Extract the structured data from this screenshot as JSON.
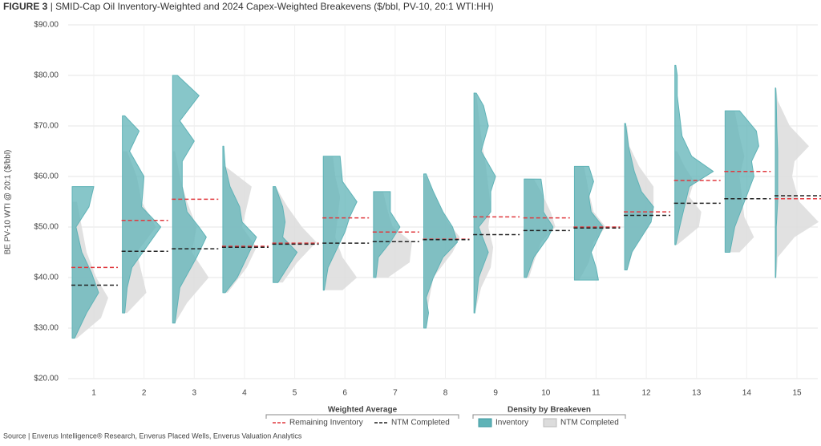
{
  "chart_data": {
    "type": "violin",
    "figure_label": "FIGURE 3",
    "title": "| SMID-Cap Oil Inventory-Weighted and 2024 Capex-Weighted Breakevens ($/bbl, PV-10, 20:1 WTI:HH)",
    "y_label": "BE PV-10 WTI @ 20:1 ($/bbl)",
    "source": "Source | Enverus Intelligence® Research, Enverus Placed Wells, Enverus Valuation Analytics",
    "categories": [
      "1",
      "2",
      "3",
      "4",
      "5",
      "6",
      "7",
      "8",
      "9",
      "10",
      "11",
      "12",
      "13",
      "14",
      "15"
    ],
    "ylim": [
      20,
      90
    ],
    "yticks": [
      {
        "value": 20,
        "label": "$20.00"
      },
      {
        "value": 30,
        "label": "$30.00"
      },
      {
        "value": 40,
        "label": "$40.00"
      },
      {
        "value": 50,
        "label": "$50.00"
      },
      {
        "value": 60,
        "label": "$60.00"
      },
      {
        "value": 70,
        "label": "$70.00"
      },
      {
        "value": 80,
        "label": "$80.00"
      },
      {
        "value": 90,
        "label": "$90.00"
      }
    ],
    "grid": true,
    "series_group": "Weighted Average",
    "series": [
      {
        "name": "Remaining Inventory",
        "color": "#e0393e",
        "values": [
          42,
          51.3,
          55.5,
          46.2,
          46.8,
          51.8,
          49,
          47.6,
          52,
          51.8,
          50,
          53,
          59.2,
          61,
          55.6
        ]
      },
      {
        "name": "NTM Completed",
        "color": "#222222",
        "values": [
          38.5,
          45.2,
          45.7,
          46,
          46.6,
          46.8,
          47.1,
          47.5,
          48.5,
          49.3,
          49.8,
          52.3,
          54.7,
          55.6,
          56.2
        ]
      }
    ],
    "density_group": "Density by Breakeven",
    "densities": [
      {
        "name": "NTM Completed",
        "color": "#dcdcdc",
        "groups": [
          {
            "y": [
              28,
              32,
              36,
              40,
              45,
              50,
              55
            ],
            "density": [
              0.1,
              0.6,
              0.75,
              0.5,
              0.3,
              0.2,
              0.1
            ]
          },
          {
            "y": [
              33,
              37,
              41,
              45,
              50,
              55,
              60,
              65
            ],
            "density": [
              0.1,
              0.5,
              0.4,
              0.3,
              0.7,
              0.4,
              0.3,
              0.1
            ]
          },
          {
            "y": [
              31,
              35,
              40,
              45,
              50,
              55,
              60,
              65
            ],
            "density": [
              0.05,
              0.3,
              0.75,
              0.4,
              0.5,
              0.3,
              0.15,
              0.05
            ]
          },
          {
            "y": [
              37,
              42,
              46,
              50,
              54,
              58,
              62
            ],
            "density": [
              0.1,
              0.5,
              0.7,
              0.4,
              0.5,
              0.6,
              0.05
            ]
          },
          {
            "y": [
              39,
              43,
              47,
              50,
              54,
              58
            ],
            "density": [
              0.2,
              0.5,
              0.9,
              0.6,
              0.3,
              0.05
            ]
          },
          {
            "y": [
              37.5,
              40,
              44,
              48,
              52,
              56,
              60,
              64
            ],
            "density": [
              0.4,
              0.7,
              0.4,
              0.25,
              0.3,
              0.35,
              0.25,
              0.2
            ]
          },
          {
            "y": [
              40,
              43,
              47,
              50,
              53,
              57
            ],
            "density": [
              0.3,
              0.75,
              0.8,
              0.4,
              0.3,
              0.2
            ]
          },
          {
            "y": [
              30,
              35,
              40,
              45,
              48,
              51,
              55,
              60
            ],
            "density": [
              0.05,
              0.1,
              0.2,
              0.6,
              0.75,
              0.5,
              0.3,
              0.05
            ]
          },
          {
            "y": [
              33,
              38,
              42,
              46,
              50,
              54,
              58,
              62,
              68,
              76.5
            ],
            "density": [
              0.02,
              0.15,
              0.35,
              0.4,
              0.3,
              0.35,
              0.3,
              0.25,
              0.15,
              0.05
            ]
          },
          {
            "y": [
              40,
              43,
              47,
              50,
              53,
              57,
              59.5
            ],
            "density": [
              0.1,
              0.2,
              0.35,
              0.65,
              0.55,
              0.35,
              0.2
            ]
          },
          {
            "y": [
              39.5,
              43,
              47,
              50,
              53,
              57,
              62
            ],
            "density": [
              0.1,
              0.3,
              0.4,
              0.65,
              0.4,
              0.3,
              0.2
            ]
          },
          {
            "y": [
              41.5,
              46,
              50,
              54,
              58,
              62,
              66,
              70
            ],
            "density": [
              0.05,
              0.2,
              0.5,
              0.6,
              0.6,
              0.3,
              0.1,
              0.05
            ]
          },
          {
            "y": [
              46.5,
              50,
              53,
              56,
              59,
              62,
              65
            ],
            "density": [
              0.05,
              0.5,
              0.55,
              0.3,
              0.4,
              0.2,
              0.05
            ]
          },
          {
            "y": [
              45,
              48,
              52,
              56,
              60,
              64,
              68,
              73
            ],
            "density": [
              0.3,
              0.6,
              0.4,
              0.35,
              0.3,
              0.4,
              0.3,
              0.2
            ]
          },
          {
            "y": [
              40,
              44,
              48,
              51,
              55,
              60,
              63,
              66,
              70,
              75,
              77.5
            ],
            "density": [
              0.02,
              0.05,
              0.4,
              0.9,
              0.5,
              0.35,
              0.4,
              0.7,
              0.3,
              0.05,
              0.02
            ]
          }
        ]
      },
      {
        "name": "Inventory",
        "color": "#5fb3b7",
        "groups": [
          {
            "y": [
              28,
              33,
              37,
              41,
              45,
              50,
              54,
              58
            ],
            "density": [
              0.05,
              0.3,
              0.55,
              0.4,
              0.2,
              0.08,
              0.35,
              0.45
            ]
          },
          {
            "y": [
              33,
              38,
              42,
              46,
              50,
              54,
              60,
              65,
              69,
              72
            ],
            "density": [
              0.05,
              0.1,
              0.2,
              0.5,
              0.8,
              0.4,
              0.45,
              0.15,
              0.35,
              0.05
            ]
          },
          {
            "y": [
              31,
              38,
              44,
              48,
              50,
              53,
              58,
              63,
              67,
              71,
              76,
              80
            ],
            "density": [
              0.05,
              0.15,
              0.5,
              0.7,
              0.55,
              0.3,
              0.2,
              0.2,
              0.45,
              0.15,
              0.55,
              0.1
            ]
          },
          {
            "y": [
              37,
              40,
              43,
              46,
              48,
              51,
              54,
              58,
              62,
              66
            ],
            "density": [
              0.05,
              0.3,
              0.45,
              0.6,
              0.7,
              0.4,
              0.35,
              0.15,
              0.05,
              0.02
            ]
          },
          {
            "y": [
              39,
              42,
              45,
              48,
              51,
              54,
              58
            ],
            "density": [
              0.1,
              0.3,
              0.5,
              0.2,
              0.25,
              0.2,
              0.05
            ]
          },
          {
            "y": [
              37.5,
              42,
              46,
              49,
              52,
              55,
              59,
              64
            ],
            "density": [
              0.02,
              0.1,
              0.3,
              0.45,
              0.55,
              0.7,
              0.4,
              0.35
            ]
          },
          {
            "y": [
              40,
              44,
              47,
              50,
              53,
              57
            ],
            "density": [
              0.05,
              0.1,
              0.35,
              0.55,
              0.35,
              0.35
            ]
          },
          {
            "y": [
              30,
              33,
              36,
              40,
              44,
              47,
              50,
              53,
              57,
              60.5
            ],
            "density": [
              0.05,
              0.1,
              0.05,
              0.2,
              0.4,
              0.7,
              0.6,
              0.4,
              0.2,
              0.05
            ]
          },
          {
            "y": [
              33,
              40,
              45,
              50,
              53,
              57,
              60,
              65,
              70,
              74,
              76.5
            ],
            "density": [
              0.02,
              0.1,
              0.3,
              0.1,
              0.35,
              0.35,
              0.45,
              0.15,
              0.3,
              0.2,
              0.05
            ]
          },
          {
            "y": [
              40,
              44,
              48,
              50,
              53,
              56,
              59.5
            ],
            "density": [
              0.05,
              0.2,
              0.5,
              0.6,
              0.4,
              0.4,
              0.35
            ]
          },
          {
            "y": [
              39.5,
              42,
              45,
              48,
              50,
              53,
              56,
              59,
              62
            ],
            "density": [
              0.5,
              0.45,
              0.35,
              0.5,
              0.6,
              0.35,
              0.3,
              0.4,
              0.3
            ]
          },
          {
            "y": [
              41.5,
              45,
              48,
              51,
              54,
              57,
              61,
              66,
              70.5
            ],
            "density": [
              0.05,
              0.15,
              0.35,
              0.55,
              0.6,
              0.35,
              0.2,
              0.08,
              0.02
            ]
          },
          {
            "y": [
              46.5,
              50,
              54,
              58,
              61,
              64,
              68,
              72,
              76,
              80,
              82
            ],
            "density": [
              0.02,
              0.1,
              0.2,
              0.3,
              0.8,
              0.35,
              0.15,
              0.1,
              0.05,
              0.05,
              0.02
            ]
          },
          {
            "y": [
              45,
              50,
              55,
              60,
              63,
              66,
              69,
              73
            ],
            "density": [
              0.1,
              0.2,
              0.4,
              0.6,
              0.55,
              0.7,
              0.65,
              0.3
            ]
          },
          {
            "y": [
              40,
              45,
              50,
              55,
              60,
              65,
              70,
              75,
              77.5
            ],
            "density": [
              0.01,
              0.02,
              0.02,
              0.05,
              0.05,
              0.05,
              0.03,
              0.02,
              0.01
            ]
          }
        ]
      }
    ]
  }
}
